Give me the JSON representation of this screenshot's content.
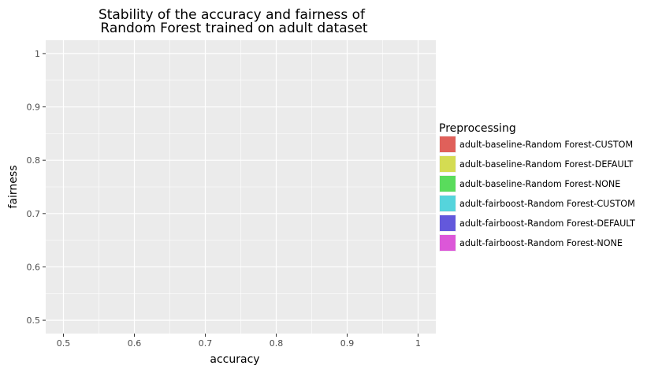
{
  "chart_data": {
    "type": "scatter",
    "title_lines": [
      "Stability of the accuracy and fairness of",
      "Random Forest trained on adult dataset"
    ],
    "xlabel": "accuracy",
    "ylabel": "fairness",
    "xlim": [
      0.475,
      1.025
    ],
    "ylim": [
      0.475,
      1.025
    ],
    "x_ticks": [
      0.5,
      0.6,
      0.7,
      0.8,
      0.9,
      1.0
    ],
    "x_tick_labels": [
      "0.5",
      "0.6",
      "0.7",
      "0.8",
      "0.9",
      "1"
    ],
    "y_ticks": [
      0.5,
      0.6,
      0.7,
      0.8,
      0.9,
      1.0
    ],
    "y_tick_labels": [
      "0.5",
      "0.6",
      "0.7",
      "0.8",
      "0.9",
      "1"
    ],
    "grid": true,
    "panel_background": "#ebebeb",
    "legend": {
      "title": "Preprocessing",
      "placement": "right",
      "entries": [
        {
          "label": "adult-baseline-Random Forest-CUSTOM",
          "color": "#e0605a"
        },
        {
          "label": "adult-baseline-Random Forest-DEFAULT",
          "color": "#d4dc52"
        },
        {
          "label": "adult-baseline-Random Forest-NONE",
          "color": "#59dc5c"
        },
        {
          "label": "adult-fairboost-Random Forest-CUSTOM",
          "color": "#55d4dc"
        },
        {
          "label": "adult-fairboost-Random Forest-DEFAULT",
          "color": "#6358dc"
        },
        {
          "label": "adult-fairboost-Random Forest-NONE",
          "color": "#dc57d8"
        }
      ]
    },
    "series": []
  }
}
